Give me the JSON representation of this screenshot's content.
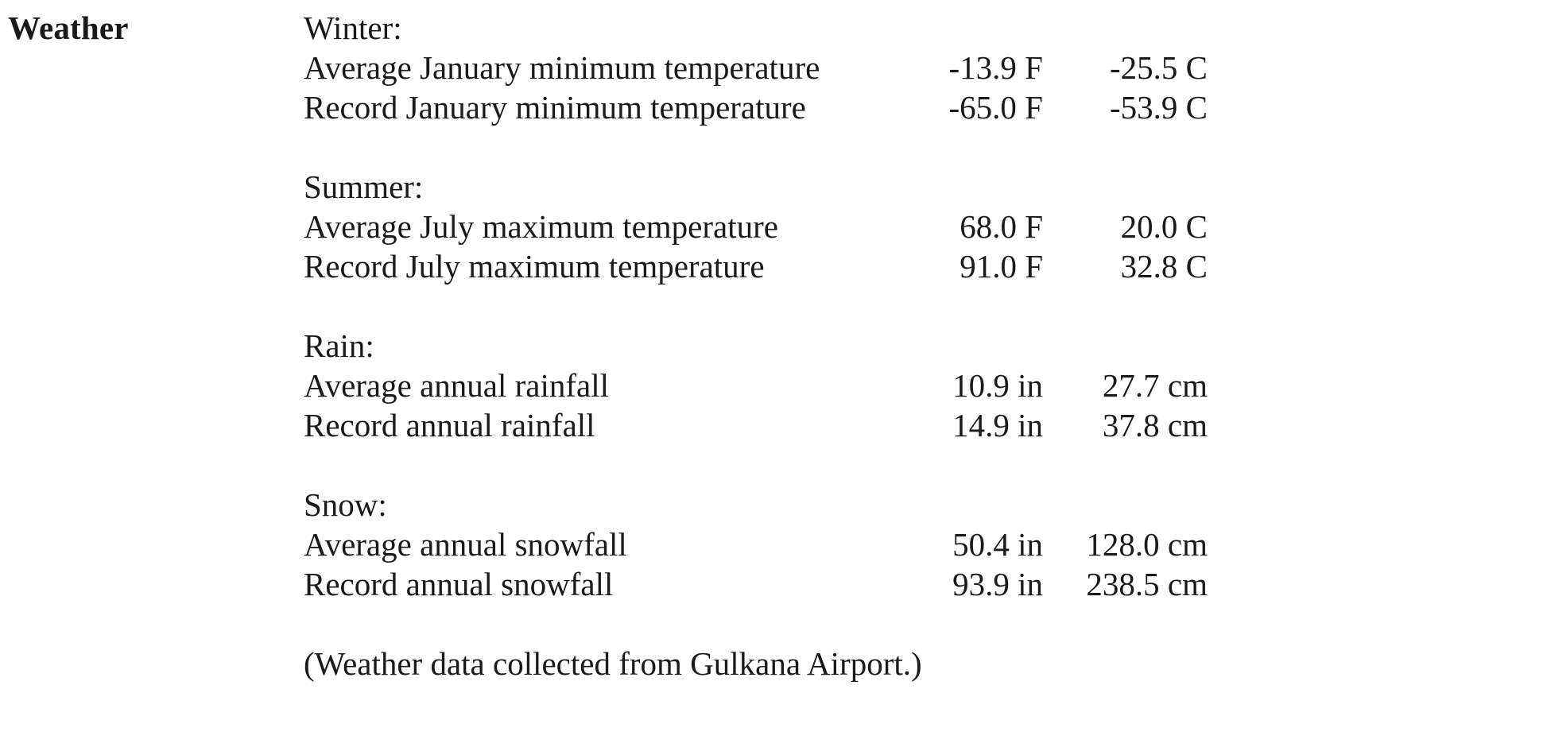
{
  "heading": "Weather",
  "groups": [
    {
      "title": "Winter:",
      "rows": [
        {
          "label": "Average January minimum temperature",
          "imperial": "-13.9 F",
          "metric": "-25.5 C"
        },
        {
          "label": "Record January minimum temperature",
          "imperial": "-65.0 F",
          "metric": "-53.9 C"
        }
      ]
    },
    {
      "title": "Summer:",
      "rows": [
        {
          "label": "Average July maximum temperature",
          "imperial": "68.0 F",
          "metric": "20.0 C"
        },
        {
          "label": "Record July maximum temperature",
          "imperial": "91.0 F",
          "metric": "32.8 C"
        }
      ]
    },
    {
      "title": "Rain:",
      "rows": [
        {
          "label": "Average annual rainfall",
          "imperial": "10.9 in",
          "metric": "27.7 cm"
        },
        {
          "label": "Record annual rainfall",
          "imperial": "14.9 in",
          "metric": "37.8 cm"
        }
      ]
    },
    {
      "title": "Snow:",
      "rows": [
        {
          "label": "Average annual snowfall",
          "imperial": "50.4 in",
          "metric": "128.0 cm"
        },
        {
          "label": "Record annual snowfall",
          "imperial": "93.9 in",
          "metric": "238.5 cm"
        }
      ]
    }
  ],
  "note": "(Weather data collected from Gulkana Airport.)"
}
